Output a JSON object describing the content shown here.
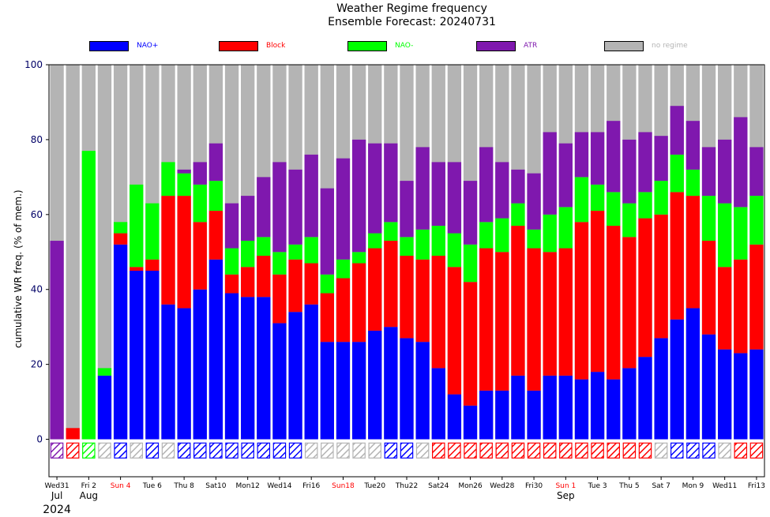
{
  "chart_data": {
    "type": "bar",
    "stacked": true,
    "title": "Weather Regime frequency",
    "subtitle": "Ensemble Forecast: 20240731",
    "ylabel": "cumulative WR freq. (% of mem.)",
    "ylim": [
      -10,
      100
    ],
    "yticks": [
      0,
      20,
      40,
      60,
      80,
      100
    ],
    "colors": {
      "NAO+": "#0000ff",
      "Block": "#ff0000",
      "NAO-": "#00ff00",
      "ATR": "#7f18ae",
      "no regime": "#b4b4b4"
    },
    "legend": [
      {
        "name": "NAO+",
        "color": "#0000ff"
      },
      {
        "name": "Block",
        "color": "#ff0000"
      },
      {
        "name": "NAO-",
        "color": "#00ff00"
      },
      {
        "name": "ATR",
        "color": "#7f18ae"
      },
      {
        "name": "no regime",
        "color": "#b4b4b4"
      }
    ],
    "series": [
      {
        "name": "NAO+",
        "values": [
          0,
          0,
          0,
          17,
          52,
          45,
          45,
          36,
          35,
          40,
          48,
          39,
          38,
          38,
          31,
          34,
          36,
          26,
          26,
          26,
          29,
          30,
          27,
          26,
          19,
          12,
          9,
          13,
          13,
          17,
          13,
          17,
          17,
          16,
          18,
          16,
          19,
          22,
          27,
          32,
          35,
          28,
          24,
          23,
          24
        ]
      },
      {
        "name": "Block",
        "values": [
          0,
          3,
          0,
          0,
          3,
          1,
          3,
          29,
          30,
          18,
          13,
          5,
          8,
          11,
          13,
          14,
          11,
          13,
          17,
          21,
          22,
          23,
          22,
          22,
          30,
          34,
          33,
          38,
          37,
          40,
          38,
          33,
          34,
          42,
          43,
          41,
          35,
          37,
          33,
          34,
          30,
          25,
          22,
          25,
          28
        ]
      },
      {
        "name": "NAO-",
        "values": [
          0,
          0,
          77,
          2,
          3,
          22,
          15,
          9,
          6,
          10,
          8,
          7,
          7,
          5,
          6,
          4,
          7,
          5,
          5,
          3,
          4,
          5,
          5,
          8,
          8,
          9,
          10,
          7,
          9,
          6,
          5,
          10,
          11,
          12,
          7,
          9,
          9,
          7,
          9,
          10,
          7,
          12,
          17,
          14,
          13
        ]
      },
      {
        "name": "ATR",
        "values": [
          53,
          0,
          0,
          0,
          0,
          0,
          0,
          0,
          1,
          6,
          10,
          12,
          12,
          16,
          24,
          20,
          22,
          23,
          27,
          30,
          24,
          21,
          15,
          22,
          17,
          19,
          17,
          20,
          15,
          9,
          15,
          22,
          17,
          12,
          14,
          19,
          17,
          16,
          12,
          13,
          13,
          13,
          17,
          24,
          13
        ]
      }
    ],
    "regime_markers": [
      "ATR",
      "Block",
      "NAO-",
      "none",
      "NAO+",
      "none",
      "NAO+",
      "none",
      "NAO+",
      "NAO+",
      "NAO+",
      "NAO+",
      "NAO+",
      "NAO+",
      "NAO+",
      "NAO+",
      "none",
      "none",
      "none",
      "none",
      "none",
      "NAO+",
      "NAO+",
      "none",
      "Block",
      "Block",
      "Block",
      "Block",
      "Block",
      "Block",
      "Block",
      "Block",
      "Block",
      "Block",
      "Block",
      "Block",
      "Block",
      "Block",
      "none",
      "NAO+",
      "NAO+",
      "NAO+",
      "none",
      "Block",
      "Block"
    ],
    "xtick_labels": [
      {
        "index": 0,
        "label": "Wed31",
        "color": "#000000"
      },
      {
        "index": 2,
        "label": "Fri 2",
        "color": "#000000"
      },
      {
        "index": 4,
        "label": "Sun 4",
        "color": "#ff0000"
      },
      {
        "index": 6,
        "label": "Tue 6",
        "color": "#000000"
      },
      {
        "index": 8,
        "label": "Thu 8",
        "color": "#000000"
      },
      {
        "index": 10,
        "label": "Sat10",
        "color": "#000000"
      },
      {
        "index": 12,
        "label": "Mon12",
        "color": "#000000"
      },
      {
        "index": 14,
        "label": "Wed14",
        "color": "#000000"
      },
      {
        "index": 16,
        "label": "Fri16",
        "color": "#000000"
      },
      {
        "index": 18,
        "label": "Sun18",
        "color": "#ff0000"
      },
      {
        "index": 20,
        "label": "Tue20",
        "color": "#000000"
      },
      {
        "index": 22,
        "label": "Thu22",
        "color": "#000000"
      },
      {
        "index": 24,
        "label": "Sat24",
        "color": "#000000"
      },
      {
        "index": 26,
        "label": "Mon26",
        "color": "#000000"
      },
      {
        "index": 28,
        "label": "Wed28",
        "color": "#000000"
      },
      {
        "index": 30,
        "label": "Fri30",
        "color": "#000000"
      },
      {
        "index": 32,
        "label": "Sun 1",
        "color": "#ff0000"
      },
      {
        "index": 34,
        "label": "Tue 3",
        "color": "#000000"
      },
      {
        "index": 36,
        "label": "Thu 5",
        "color": "#000000"
      },
      {
        "index": 38,
        "label": "Sat 7",
        "color": "#000000"
      },
      {
        "index": 40,
        "label": "Mon 9",
        "color": "#000000"
      },
      {
        "index": 42,
        "label": "Wed11",
        "color": "#000000"
      },
      {
        "index": 44,
        "label": "Fri13",
        "color": "#000000"
      }
    ],
    "month_labels": [
      {
        "index": 0,
        "label": "Jul"
      },
      {
        "index": 2,
        "label": "Aug"
      },
      {
        "index": 32,
        "label": "Sep"
      }
    ],
    "year_label": {
      "index": 0,
      "label": "2024"
    }
  }
}
